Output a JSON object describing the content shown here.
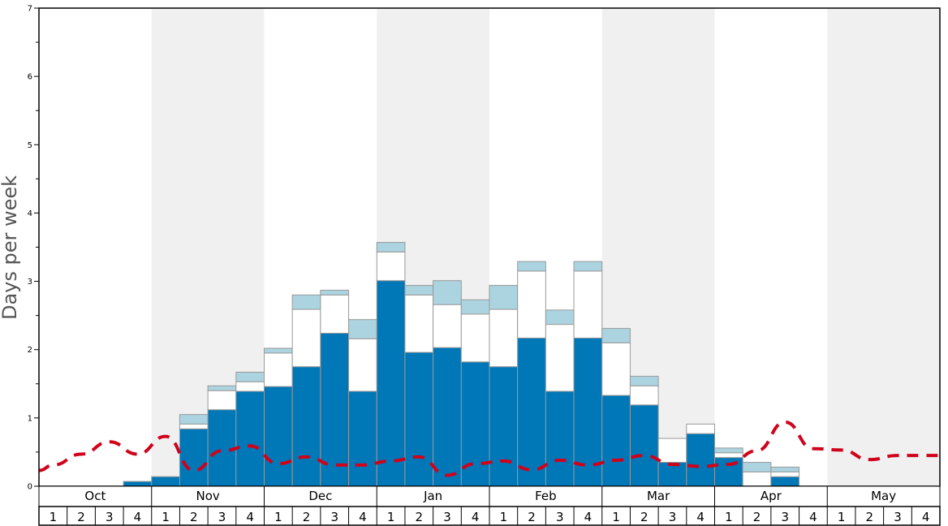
{
  "chart_data": {
    "type": "bar",
    "ylabel": "Days per week",
    "ylim": [
      0,
      7
    ],
    "yticks": [
      "0",
      "1",
      "2",
      "3",
      "4",
      "5",
      "6",
      "7"
    ],
    "months": [
      "Oct",
      "Nov",
      "Dec",
      "Jan",
      "Feb",
      "Mar",
      "Apr",
      "May"
    ],
    "weeks": [
      "1",
      "2",
      "3",
      "4"
    ],
    "shaded_months": [
      "Nov",
      "Jan",
      "Mar",
      "May"
    ],
    "grid": false,
    "legend": "none",
    "colors": {
      "base": "#0077b6",
      "middle": "#ffffff",
      "top": "#acd4e0",
      "line": "#d0021b",
      "shade": "#f0f0f0",
      "bar_border": "#999999"
    },
    "series": [
      {
        "values": [
          0,
          0,
          0,
          0.07,
          0.14,
          0.84,
          1.12,
          1.39,
          1.46,
          1.75,
          2.24,
          1.39,
          3.01,
          1.96,
          2.03,
          1.82,
          1.75,
          2.17,
          1.39,
          2.17,
          1.33,
          1.19,
          0.35,
          0.77,
          0.42,
          0,
          0.14,
          0,
          0,
          0,
          0,
          0
        ]
      },
      {
        "values": [
          0,
          0,
          0,
          0,
          0,
          0.07,
          0.28,
          0.14,
          0.49,
          0.84,
          0.56,
          0.77,
          0.42,
          0.84,
          0.63,
          0.7,
          0.84,
          0.98,
          0.98,
          0.98,
          0.77,
          0.28,
          0.35,
          0.14,
          0.07,
          0.21,
          0.07,
          0,
          0,
          0,
          0,
          0
        ]
      },
      {
        "values": [
          0,
          0,
          0,
          0,
          0,
          0.14,
          0.07,
          0.14,
          0.07,
          0.21,
          0.07,
          0.28,
          0.14,
          0.14,
          0.35,
          0.21,
          0.35,
          0.14,
          0.21,
          0.14,
          0.21,
          0.14,
          0,
          0,
          0.07,
          0.14,
          0.07,
          0,
          0,
          0,
          0,
          0
        ]
      },
      {
        "type": "line",
        "style": "dashed",
        "values": [
          0.31,
          0.47,
          0.65,
          0.47,
          0.73,
          0.23,
          0.52,
          0.59,
          0.33,
          0.43,
          0.31,
          0.31,
          0.37,
          0.43,
          0.16,
          0.33,
          0.37,
          0.24,
          0.38,
          0.31,
          0.38,
          0.45,
          0.32,
          0.29,
          0.32,
          0.52,
          0.94,
          0.55,
          0.53,
          0.39,
          0.45,
          0.45
        ]
      }
    ]
  }
}
